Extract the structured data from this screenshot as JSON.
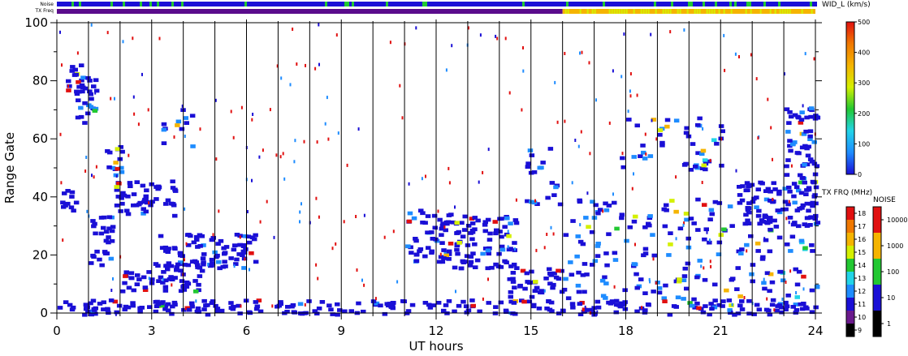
{
  "header": {
    "noise_label": "Noise",
    "txfreq_label": "TX Freq"
  },
  "chart_data": {
    "type": "heatmap",
    "xlabel": "UT hours",
    "ylabel": "Range Gate",
    "xlim": [
      0,
      24
    ],
    "ylim": [
      0,
      100
    ],
    "xticks": [
      0,
      3,
      6,
      9,
      12,
      15,
      18,
      21,
      24
    ],
    "yticks": [
      0,
      20,
      40,
      60,
      80,
      100
    ],
    "vertical_markers": [
      1,
      2,
      3,
      4,
      5,
      6,
      7,
      8,
      9,
      10,
      11,
      12,
      13,
      14,
      15,
      16,
      17,
      18,
      19,
      20,
      21,
      22,
      23
    ],
    "grid": false,
    "regions": [
      {
        "x": [
          0.05,
          0.55
        ],
        "y": [
          34,
          44
        ],
        "level": 0.05
      },
      {
        "x": [
          0.1,
          0.85
        ],
        "y": [
          76,
          86
        ],
        "level": 0.18
      },
      {
        "x": [
          0.5,
          1.2
        ],
        "y": [
          66,
          82
        ],
        "level": 0.25
      },
      {
        "x": [
          1.0,
          1.7
        ],
        "y": [
          16,
          34
        ],
        "level": 0.08
      },
      {
        "x": [
          1.5,
          2.2
        ],
        "y": [
          48,
          58
        ],
        "level": 0.2
      },
      {
        "x": [
          1.8,
          3.8
        ],
        "y": [
          34,
          46
        ],
        "level": 0.06
      },
      {
        "x": [
          2.0,
          4.6
        ],
        "y": [
          8,
          18
        ],
        "level": 0.05
      },
      {
        "x": [
          3.2,
          6.3
        ],
        "y": [
          16,
          28
        ],
        "level": 0.08
      },
      {
        "x": [
          3.3,
          4.3
        ],
        "y": [
          55,
          72
        ],
        "level": 0.3
      },
      {
        "x": [
          11.0,
          12.6
        ],
        "y": [
          18,
          36
        ],
        "level": 0.1
      },
      {
        "x": [
          12.5,
          14.5
        ],
        "y": [
          16,
          34
        ],
        "level": 0.12
      },
      {
        "x": [
          14.2,
          16.0
        ],
        "y": [
          6,
          16
        ],
        "level": 0.05
      },
      {
        "x": [
          14.8,
          16.0
        ],
        "y": [
          36,
          60
        ],
        "level": 0.3
      },
      {
        "x": [
          17.8,
          21.0
        ],
        "y": [
          50,
          68
        ],
        "level": 0.3
      },
      {
        "x": [
          19.5,
          20.5
        ],
        "y": [
          50,
          60
        ],
        "level": 0.35
      },
      {
        "x": [
          21.5,
          24.0
        ],
        "y": [
          30,
          46
        ],
        "level": 0.08
      },
      {
        "x": [
          23.0,
          24.0
        ],
        "y": [
          45,
          72
        ],
        "level": 0.22
      },
      {
        "x": [
          16.0,
          24.0
        ],
        "y": [
          2,
          40
        ],
        "level": 0.3
      },
      {
        "x": [
          0.0,
          24.0
        ],
        "y": [
          0,
          5
        ],
        "level": 0.04
      }
    ],
    "noise_bar": {
      "colors": [
        "#1a0fd6",
        "#22c832"
      ],
      "level": "mostly low"
    },
    "txfreq_bar": {
      "segments": [
        {
          "x": [
            0,
            16
          ],
          "color": "#5a0c8c"
        },
        {
          "x": [
            16,
            24
          ],
          "color": "#f5b400"
        }
      ]
    },
    "colorbars": [
      {
        "title": "WID_L (km/s)",
        "ticks": [
          0,
          100,
          200,
          300,
          400,
          500
        ],
        "colors": [
          "#1a0fd6",
          "#1e8cff",
          "#22d4e8",
          "#22c832",
          "#d4f000",
          "#f5b400",
          "#f07800",
          "#e11010"
        ]
      },
      {
        "title": "TX FRQ (MHz)",
        "ticks": [
          9,
          10,
          11,
          12,
          13,
          14,
          15,
          16,
          17,
          18
        ],
        "colors": [
          "#000000",
          "#6a1a8c",
          "#1a0fd6",
          "#1e8cff",
          "#22d4e8",
          "#22c832",
          "#d4f000",
          "#f5b400",
          "#f07800",
          "#e11010"
        ]
      },
      {
        "title": "NOISE",
        "ticks": [
          1,
          10,
          100,
          1000,
          10000
        ],
        "colors": [
          "#000000",
          "#1a0fd6",
          "#22c832",
          "#f5b400",
          "#e11010"
        ]
      }
    ]
  }
}
